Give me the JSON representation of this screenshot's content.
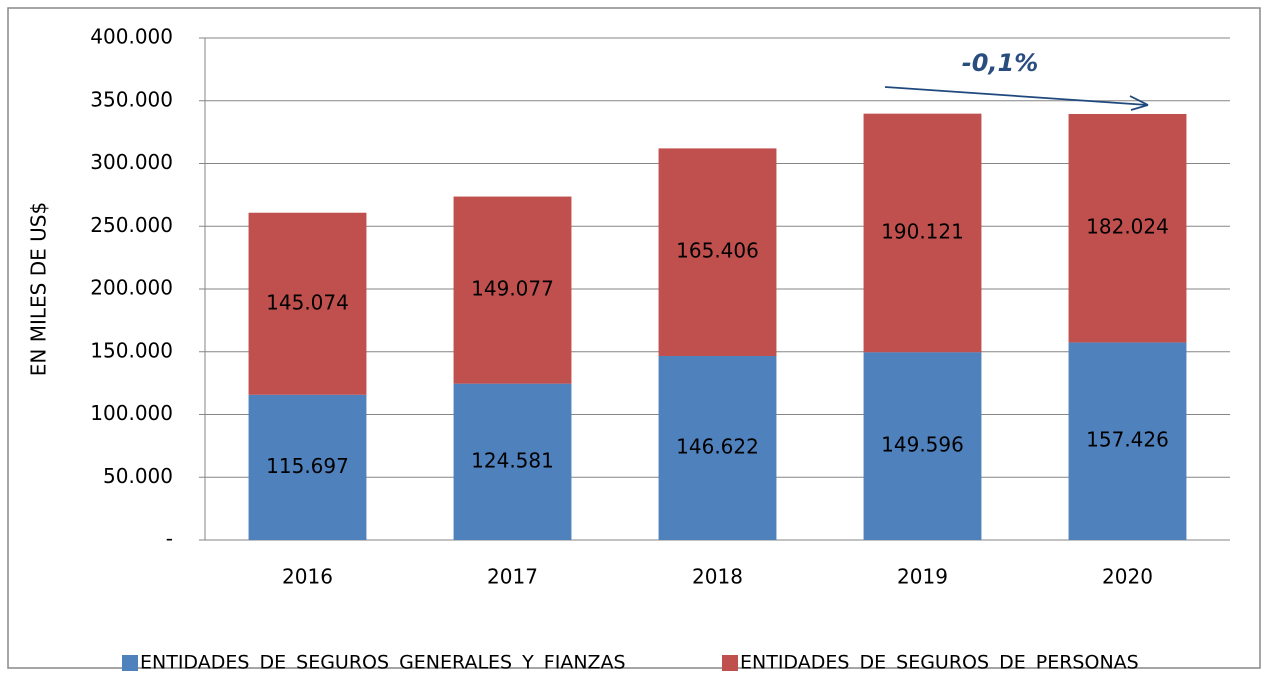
{
  "chart_data": {
    "type": "stacked_bar",
    "annotation": "-0,1%",
    "y_label": "EN MILES DE US$",
    "categories": [
      "2016",
      "2017",
      "2018",
      "2019",
      "2020"
    ],
    "series": [
      {
        "name": "ENTIDADES DE SEGUROS GENERALES Y FIANZAS",
        "color": "#4f81bd",
        "values": [
          115697,
          124581,
          146622,
          149596,
          157426
        ],
        "value_labels": [
          "115.697",
          "124.581",
          "146.622",
          "149.596",
          "157.426"
        ]
      },
      {
        "name": "ENTIDADES DE SEGUROS DE PERSONAS",
        "color": "#c0504d",
        "values": [
          145074,
          149077,
          165406,
          190121,
          182024
        ],
        "value_labels": [
          "145.074",
          "149.077",
          "165.406",
          "190.121",
          "182.024"
        ]
      }
    ],
    "ylim": [
      0,
      400000
    ],
    "yticks": [
      {
        "value": 0,
        "label": "-"
      },
      {
        "value": 50000,
        "label": "50.000"
      },
      {
        "value": 100000,
        "label": "100.000"
      },
      {
        "value": 150000,
        "label": "150.000"
      },
      {
        "value": 200000,
        "label": "200.000"
      },
      {
        "value": 250000,
        "label": "250.000"
      },
      {
        "value": 300000,
        "label": "300.000"
      },
      {
        "value": 350000,
        "label": "350.000"
      },
      {
        "value": 400000,
        "label": "400.000"
      }
    ],
    "grid": true,
    "legend": "bottom"
  }
}
